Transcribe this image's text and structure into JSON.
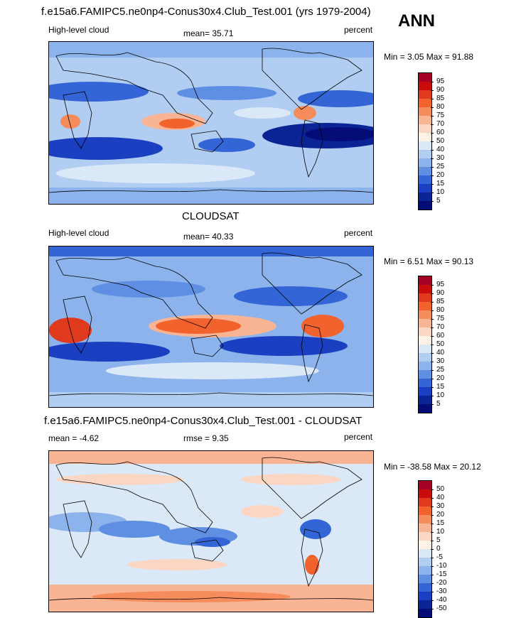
{
  "ann_label": "ANN",
  "panels": [
    {
      "title": "f.e15a6.FAMIPC5.ne0np4-Conus30x4.Club_Test.001 (yrs 1979-2004)",
      "left_label": "High-level cloud",
      "mean_label": "mean=  35.71",
      "right_label": "percent",
      "minmax_label": "Min =   3.05 Max =  91.88",
      "colorbar_ticks": [
        "95",
        "90",
        "85",
        "80",
        "75",
        "70",
        "60",
        "50",
        "40",
        "30",
        "25",
        "20",
        "15",
        "10",
        "5"
      ],
      "colorbar_colors": [
        "#a50026",
        "#c80c0c",
        "#e03a1e",
        "#f2622d",
        "#f68c5c",
        "#f9b494",
        "#fbd7c3",
        "#fff2e6",
        "#dbe8f8",
        "#b2cdf2",
        "#8db3ec",
        "#5f8fe2",
        "#3465d6",
        "#1a3fc0",
        "#0a2496",
        "#040c78"
      ]
    },
    {
      "title": "CLOUDSAT",
      "left_label": "High-level cloud",
      "mean_label": "mean=  40.33",
      "right_label": "percent",
      "minmax_label": "Min =   6.51 Max =  90.13",
      "colorbar_ticks": [
        "95",
        "90",
        "85",
        "80",
        "75",
        "70",
        "60",
        "50",
        "40",
        "30",
        "25",
        "20",
        "15",
        "10",
        "5"
      ],
      "colorbar_colors": [
        "#a50026",
        "#c80c0c",
        "#e03a1e",
        "#f2622d",
        "#f68c5c",
        "#f9b494",
        "#fbd7c3",
        "#fff2e6",
        "#dbe8f8",
        "#b2cdf2",
        "#8db3ec",
        "#5f8fe2",
        "#3465d6",
        "#1a3fc0",
        "#0a2496",
        "#040c78"
      ]
    },
    {
      "title": "f.e15a6.FAMIPC5.ne0np4-Conus30x4.Club_Test.001 - CLOUDSAT",
      "left_label": "mean =  -4.62",
      "mean_label": "rmse =   9.35",
      "right_label": "percent",
      "minmax_label": "Min = -38.58 Max =  20.12",
      "colorbar_ticks": [
        "50",
        "40",
        "30",
        "20",
        "15",
        "10",
        "5",
        "0",
        "-5",
        "-10",
        "-15",
        "-20",
        "-30",
        "-40",
        "-50"
      ],
      "colorbar_colors": [
        "#a50026",
        "#c80c0c",
        "#e03a1e",
        "#f2622d",
        "#f68c5c",
        "#f9b494",
        "#fbd7c3",
        "#fff2e6",
        "#dbe8f8",
        "#b2cdf2",
        "#8db3ec",
        "#5f8fe2",
        "#3465d6",
        "#1a3fc0",
        "#0a2496",
        "#040c78"
      ]
    }
  ]
}
